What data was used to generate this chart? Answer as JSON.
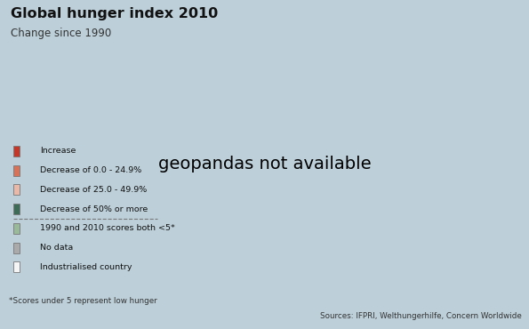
{
  "title": "Global hunger index 2010",
  "subtitle": "Change since 1990",
  "source": "Sources: IFPRI, Welthungerhilfe, Concern Worldwide",
  "footnote": "*Scores under 5 represent low hunger",
  "background_color": "#bdd0da",
  "ocean_color": "#bdd0da",
  "legend_bg": "#f0ebe0",
  "legend_items": [
    {
      "label": "Increase",
      "color": "#c0392b"
    },
    {
      "label": "Decrease of 0.0 - 24.9%",
      "color": "#d4735a"
    },
    {
      "label": "Decrease of 25.0 - 49.9%",
      "color": "#e8b8a8"
    },
    {
      "label": "Decrease of 50% or more",
      "color": "#3d6b58"
    },
    {
      "label": "1990 and 2010 scores both <5*",
      "color": "#9ab89a"
    },
    {
      "label": "No data",
      "color": "#aaaaaa"
    },
    {
      "label": "Industrialised country",
      "color": "#f5f5f5"
    }
  ],
  "country_color_map": {
    "Burundi": "#c0392b",
    "Central African Republic": "#c0392b",
    "Dem. Rep. Congo": "#c0392b",
    "Democratic Republic of the Congo": "#c0392b",
    "Zambia": "#c0392b",
    "Comoros": "#c0392b",
    "North Korea": "#c0392b",
    "Dem. Rep. Korea": "#c0392b",
    "Guinea": "#c0392b",
    "Sierra Leone": "#c0392b",
    "Cameroon": "#c0392b",
    "Ivory Coast": "#c0392b",
    "Côte d'Ivoire": "#c0392b",
    "Niger": "#c0392b",
    "Chad": "#c0392b",
    "Rwanda": "#c0392b",
    "Congo": "#c0392b",
    "Zimbabwe": "#c0392b",
    "Lesotho": "#c0392b",
    "eSwatini": "#c0392b",
    "Swaziland": "#c0392b",
    "Nigeria": "#d4735a",
    "Ethiopia": "#d4735a",
    "Sudan": "#d4735a",
    "S. Sudan": "#d4735a",
    "South Sudan": "#d4735a",
    "Kenya": "#d4735a",
    "Tanzania": "#d4735a",
    "United Republic of Tanzania": "#d4735a",
    "Mozambique": "#d4735a",
    "Malawi": "#d4735a",
    "Uganda": "#d4735a",
    "Burkina Faso": "#d4735a",
    "Mali": "#d4735a",
    "Guinea-Bissau": "#d4735a",
    "Senegal": "#d4735a",
    "Gambia": "#d4735a",
    "The Gambia": "#d4735a",
    "Liberia": "#d4735a",
    "Madagascar": "#d4735a",
    "Togo": "#d4735a",
    "Benin": "#d4735a",
    "Ghana": "#d4735a",
    "Angola": "#d4735a",
    "Gabon": "#d4735a",
    "Eritrea": "#d4735a",
    "Djibouti": "#d4735a",
    "Somalia": "#d4735a",
    "Yemen": "#d4735a",
    "Afghanistan": "#d4735a",
    "Bangladesh": "#d4735a",
    "India": "#d4735a",
    "Pakistan": "#d4735a",
    "Nepal": "#d4735a",
    "Myanmar": "#d4735a",
    "Cambodia": "#d4735a",
    "Haiti": "#d4735a",
    "Bolivia": "#d4735a",
    "Colombia": "#d4735a",
    "Venezuela": "#d4735a",
    "Nicaragua": "#d4735a",
    "Guatemala": "#d4735a",
    "Honduras": "#d4735a",
    "El Salvador": "#d4735a",
    "Timor-Leste": "#d4735a",
    "Papua New Guinea": "#d4735a",
    "Laos": "#d4735a",
    "Lao PDR": "#d4735a",
    "Mauritania": "#d4735a",
    "Peru": "#d4735a",
    "Ecuador": "#d4735a",
    "Dominican Republic": "#d4735a",
    "Equatorial Guinea": "#aaaaaa",
    "Brazil": "#e8b8a8",
    "Thailand": "#e8b8a8",
    "Vietnam": "#e8b8a8",
    "Viet Nam": "#e8b8a8",
    "Indonesia": "#e8b8a8",
    "Philippines": "#e8b8a8",
    "Mongolia": "#e8b8a8",
    "Georgia": "#e8b8a8",
    "Armenia": "#e8b8a8",
    "Azerbaijan": "#e8b8a8",
    "Turkmenistan": "#e8b8a8",
    "Uzbekistan": "#e8b8a8",
    "Kyrgyzstan": "#e8b8a8",
    "Tajikistan": "#e8b8a8",
    "Kazakhstan": "#e8b8a8",
    "Iran": "#e8b8a8",
    "Iraq": "#e8b8a8",
    "Syria": "#e8b8a8",
    "Egypt": "#e8b8a8",
    "Libya": "#aaaaaa",
    "Tunisia": "#e8b8a8",
    "Morocco": "#e8b8a8",
    "Algeria": "#e8b8a8",
    "Namibia": "#e8b8a8",
    "Botswana": "#e8b8a8",
    "South Africa": "#e8b8a8",
    "China": "#3d6b58",
    "Paraguay": "#3d6b58",
    "Mexico": "#3d6b58",
    "Cuba": "#3d6b58",
    "Costa Rica": "#3d6b58",
    "Panama": "#3d6b58",
    "Belize": "#3d6b58",
    "Uruguay": "#9ab89a",
    "Argentina": "#9ab89a",
    "Chile": "#9ab89a",
    "Trinidad and Tobago": "#9ab89a",
    "Jamaica": "#9ab89a",
    "Guyana": "#9ab89a",
    "Suriname": "#9ab89a",
    "Sri Lanka": "#9ab89a",
    "Western Sahara": "#aaaaaa",
    "Palestine": "#aaaaaa",
    "W. Sahara": "#aaaaaa",
    "United States of America": "#f5f5f5",
    "Canada": "#f5f5f5",
    "Greenland": "#f5f5f5",
    "Australia": "#f5f5f5",
    "New Zealand": "#f5f5f5",
    "Japan": "#f5f5f5",
    "South Korea": "#f5f5f5",
    "Republic of Korea": "#f5f5f5",
    "Korea": "#f5f5f5",
    "Russia": "#f5f5f5",
    "Russian Federation": "#f5f5f5",
    "Germany": "#f5f5f5",
    "France": "#f5f5f5",
    "United Kingdom": "#f5f5f5",
    "Italy": "#f5f5f5",
    "Spain": "#f5f5f5",
    "Portugal": "#f5f5f5",
    "Belgium": "#f5f5f5",
    "Netherlands": "#f5f5f5",
    "Switzerland": "#f5f5f5",
    "Austria": "#f5f5f5",
    "Sweden": "#f5f5f5",
    "Norway": "#f5f5f5",
    "Finland": "#f5f5f5",
    "Denmark": "#f5f5f5",
    "Poland": "#f5f5f5",
    "Czech Republic": "#f5f5f5",
    "Czechia": "#f5f5f5",
    "Slovakia": "#f5f5f5",
    "Hungary": "#f5f5f5",
    "Romania": "#f5f5f5",
    "Bulgaria": "#f5f5f5",
    "Greece": "#f5f5f5",
    "Croatia": "#f5f5f5",
    "Serbia": "#f5f5f5",
    "Bosnia and Herzegovina": "#f5f5f5",
    "Bosnia and Herz.": "#f5f5f5",
    "North Macedonia": "#f5f5f5",
    "Macedonia": "#f5f5f5",
    "Albania": "#f5f5f5",
    "Moldova": "#f5f5f5",
    "Ukraine": "#f5f5f5",
    "Belarus": "#f5f5f5",
    "Lithuania": "#f5f5f5",
    "Latvia": "#f5f5f5",
    "Estonia": "#f5f5f5",
    "Iceland": "#f5f5f5",
    "Ireland": "#f5f5f5",
    "Luxembourg": "#f5f5f5",
    "Slovenia": "#f5f5f5",
    "Montenegro": "#f5f5f5",
    "Cyprus": "#f5f5f5",
    "Israel": "#f5f5f5",
    "United Arab Emirates": "#f5f5f5",
    "Kuwait": "#f5f5f5",
    "Saudi Arabia": "#f5f5f5",
    "Oman": "#f5f5f5",
    "Qatar": "#f5f5f5",
    "Bahrain": "#f5f5f5",
    "Lebanon": "#f5f5f5",
    "Jordan": "#f5f5f5",
    "Turkey": "#f5f5f5",
    "Malaysia": "#f5f5f5",
    "Kosovo": "#f5f5f5",
    "Taiwan": "#f5f5f5"
  }
}
